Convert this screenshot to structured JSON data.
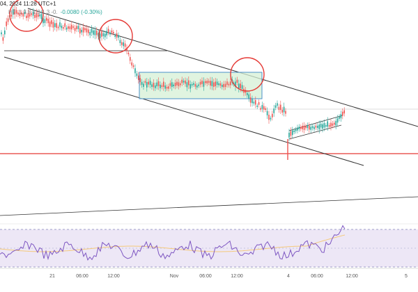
{
  "header": {
    "line1": "04, 2024 11:28 UTC+1",
    "line2_ohlc": "H2. 1.3 8 1.3  1.3  -0.",
    "line2_change": "-0.0080 (-0.30%)"
  },
  "xaxis": {
    "labels": [
      "21",
      "06:00",
      "12:00",
      "Nov",
      "06:00",
      "12:00",
      "4",
      "06:00",
      "12:00",
      "5"
    ]
  },
  "colors": {
    "bull": "#26a69a",
    "bear": "#ef5350",
    "hline_red": "#e53935",
    "trend": "#333333",
    "circle": "#e53935",
    "box_fill": "#d6f0d6",
    "box_stroke": "#4a90c8",
    "rsi_band": "#ede7f6",
    "rsi_line": "#7e57c2",
    "rsi_ma": "#f5c97a"
  }
}
